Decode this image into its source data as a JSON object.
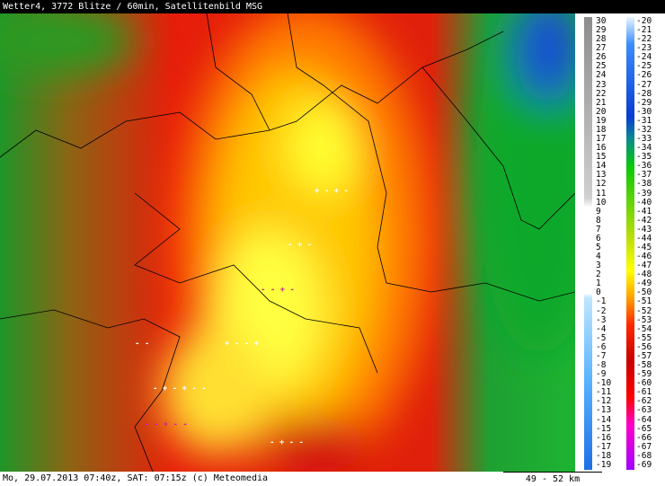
{
  "header": {
    "title": "Wetter4, 3772 Blitze / 60min, Satellitenbild MSG"
  },
  "footer": {
    "text": "Mo, 29.07.2013 07:40z, SAT: 07:15z (c) Meteomedia",
    "scale": "49 - 52 km"
  },
  "legend": {
    "left_labels": [
      30,
      29,
      28,
      27,
      26,
      25,
      24,
      23,
      22,
      21,
      20,
      19,
      18,
      17,
      16,
      15,
      14,
      13,
      12,
      11,
      10,
      9,
      8,
      7,
      6,
      5,
      4,
      3,
      2,
      1,
      0,
      -1,
      -2,
      -3,
      -4,
      -5,
      -6,
      -7,
      -8,
      -9,
      -10,
      -11,
      -12,
      -13,
      -14,
      -15,
      -16,
      -17,
      -18,
      -19
    ],
    "right_labels": [
      -20,
      -21,
      -22,
      -23,
      -24,
      -25,
      -26,
      -27,
      -28,
      -29,
      -30,
      -31,
      -32,
      -33,
      -34,
      -35,
      -36,
      -37,
      -38,
      -39,
      -40,
      -41,
      -42,
      -43,
      -44,
      -45,
      -46,
      -47,
      -48,
      -49,
      -50,
      -51,
      -52,
      -53,
      -54,
      -55,
      -56,
      -57,
      -58,
      -59,
      -60,
      -61,
      -62,
      -63,
      -64,
      -65,
      -66,
      -67,
      -68,
      -69
    ]
  }
}
